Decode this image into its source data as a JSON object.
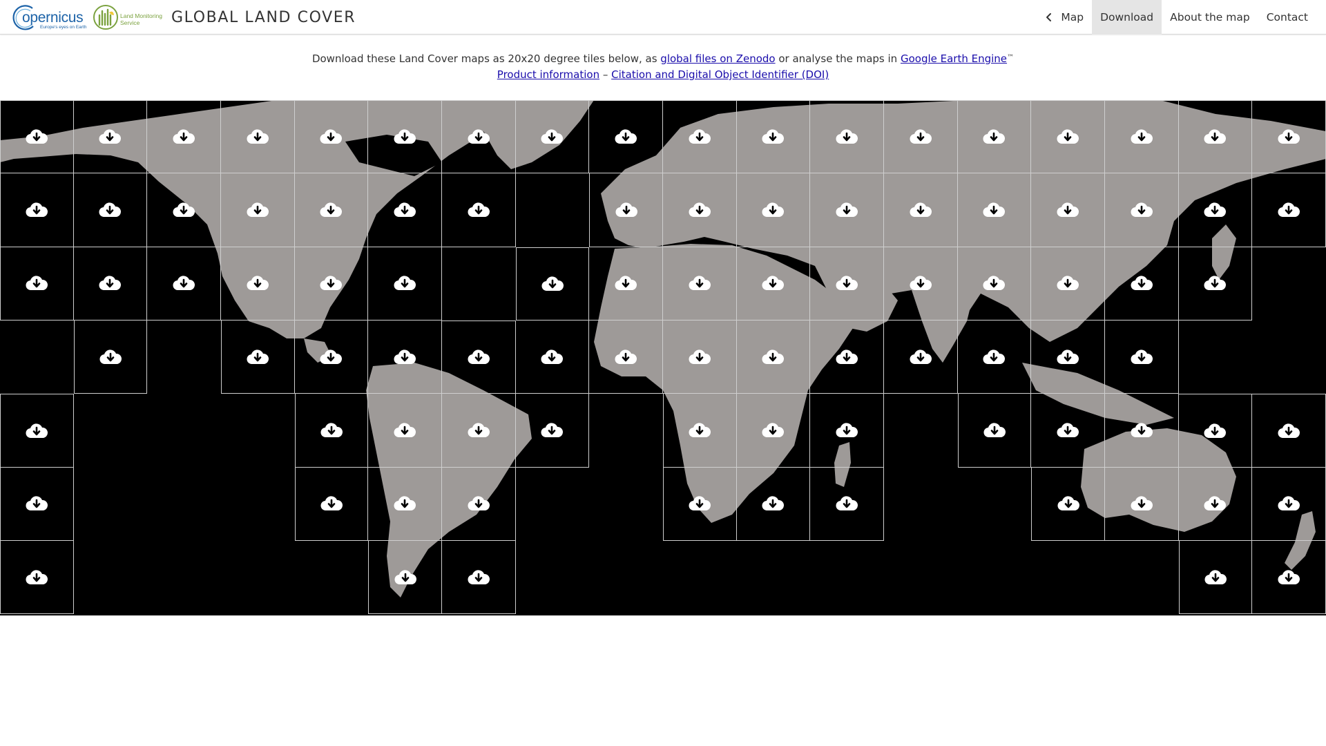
{
  "header": {
    "copernicus_logo": {
      "letter": "C",
      "word": "opernicus",
      "tagline": "Europe's eyes on Earth"
    },
    "lms_logo": {
      "text": "Land Monitoring Service"
    },
    "title": "GLOBAL LAND COVER",
    "nav": [
      {
        "label": "Map",
        "icon": "chevron-left-icon",
        "active": false
      },
      {
        "label": "Download",
        "active": true
      },
      {
        "label": "About the map",
        "active": false
      },
      {
        "label": "Contact",
        "active": false
      }
    ]
  },
  "intro": {
    "line1_before": "Download these Land Cover maps as 20x20 degree tiles below, as ",
    "link_zenodo": "global files on Zenodo",
    "line1_middle": " or analyse the maps in ",
    "link_gee": "Google Earth Engine",
    "trademark": "™",
    "link_product": "Product information",
    "separator": " – ",
    "link_citation": "Citation and Digital Object Identifier (DOI)"
  },
  "map": {
    "tile_icon": "cloud-download-icon",
    "colors": {
      "ocean": "#000000",
      "land": "#9e9a98",
      "tile_border": "#cfcfcf",
      "icon": "#ffffff"
    },
    "tiles": [
      [
        0,
        0
      ],
      [
        1,
        0
      ],
      [
        2,
        0
      ],
      [
        3,
        0
      ],
      [
        4,
        0
      ],
      [
        5,
        0
      ],
      [
        6,
        0
      ],
      [
        7,
        0
      ],
      [
        8,
        0
      ],
      [
        9,
        0
      ],
      [
        10,
        0
      ],
      [
        11,
        0
      ],
      [
        12,
        0
      ],
      [
        13,
        0
      ],
      [
        14,
        0
      ],
      [
        15,
        0
      ],
      [
        16,
        0
      ],
      [
        17,
        0
      ],
      [
        0,
        1
      ],
      [
        1,
        1
      ],
      [
        2,
        1
      ],
      [
        3,
        1
      ],
      [
        4,
        1
      ],
      [
        5,
        1
      ],
      [
        6,
        1
      ],
      [
        8,
        1
      ],
      [
        9,
        1
      ],
      [
        10,
        1
      ],
      [
        11,
        1
      ],
      [
        12,
        1
      ],
      [
        13,
        1
      ],
      [
        14,
        1
      ],
      [
        15,
        1
      ],
      [
        16,
        1
      ],
      [
        17,
        1
      ],
      [
        0,
        2
      ],
      [
        1,
        2
      ],
      [
        2,
        2
      ],
      [
        3,
        2
      ],
      [
        4,
        2
      ],
      [
        5,
        2
      ],
      [
        7,
        2
      ],
      [
        8,
        2
      ],
      [
        9,
        2
      ],
      [
        10,
        2
      ],
      [
        11,
        2
      ],
      [
        12,
        2
      ],
      [
        13,
        2
      ],
      [
        14,
        2
      ],
      [
        15,
        2
      ],
      [
        16,
        2
      ],
      [
        1,
        3
      ],
      [
        3,
        3
      ],
      [
        4,
        3
      ],
      [
        5,
        3
      ],
      [
        6,
        3
      ],
      [
        7,
        3
      ],
      [
        8,
        3
      ],
      [
        9,
        3
      ],
      [
        10,
        3
      ],
      [
        11,
        3
      ],
      [
        12,
        3
      ],
      [
        13,
        3
      ],
      [
        14,
        3
      ],
      [
        15,
        3
      ],
      [
        0,
        4
      ],
      [
        4,
        4
      ],
      [
        5,
        4
      ],
      [
        6,
        4
      ],
      [
        7,
        4
      ],
      [
        9,
        4
      ],
      [
        10,
        4
      ],
      [
        11,
        4
      ],
      [
        13,
        4
      ],
      [
        14,
        4
      ],
      [
        15,
        4
      ],
      [
        16,
        4
      ],
      [
        17,
        4
      ],
      [
        0,
        5
      ],
      [
        4,
        5
      ],
      [
        5,
        5
      ],
      [
        6,
        5
      ],
      [
        9,
        5
      ],
      [
        10,
        5
      ],
      [
        11,
        5
      ],
      [
        14,
        5
      ],
      [
        15,
        5
      ],
      [
        16,
        5
      ],
      [
        17,
        5
      ],
      [
        0,
        6
      ],
      [
        5,
        6
      ],
      [
        6,
        6
      ],
      [
        16,
        6
      ],
      [
        17,
        6
      ]
    ]
  }
}
